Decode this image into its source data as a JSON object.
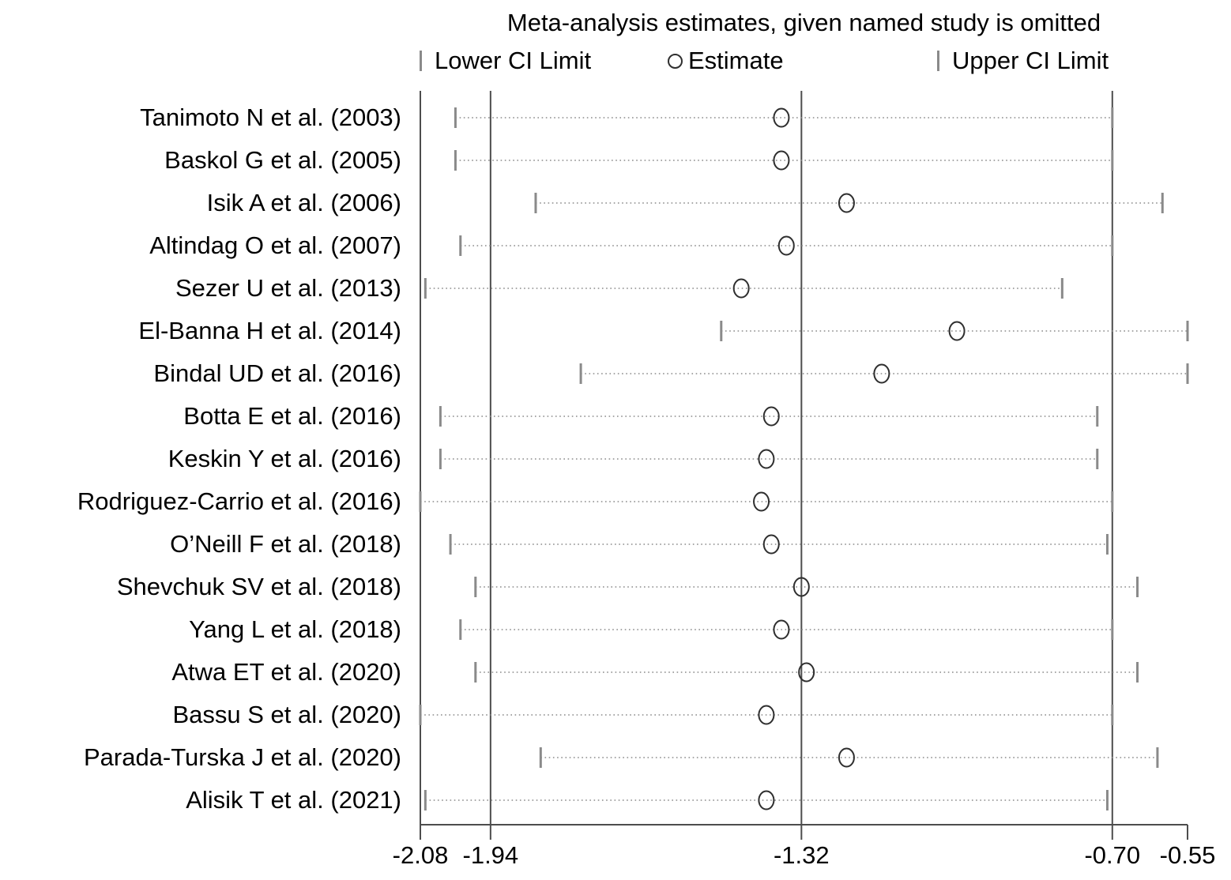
{
  "title": "Meta-analysis estimates, given named study is omitted",
  "legend": {
    "items": [
      {
        "marker": "bar-icon",
        "label": "Lower CI Limit"
      },
      {
        "marker": "circle-icon",
        "label": "Estimate"
      },
      {
        "marker": "bar-icon",
        "label": "Upper CI Limit"
      }
    ]
  },
  "colors": {
    "text": "#000000",
    "axis_line": "#4d4d4d",
    "reference_line": "#4d4d4d",
    "dotted_line": "#8a8a8a",
    "ci_tick": "#8a8a8a",
    "estimate_stroke": "#2f2f2f"
  },
  "chart_data": {
    "type": "scatter",
    "subtype": "leave-one-out-forest-plot",
    "title": "Meta-analysis estimates, given named study is omitted",
    "legend_position": "top",
    "grid": false,
    "xlim": [
      -2.08,
      -0.55
    ],
    "x_ticks": [
      {
        "value": -2.08,
        "label": "-2.08"
      },
      {
        "value": -1.94,
        "label": "-1.94"
      },
      {
        "value": -1.32,
        "label": "-1.32"
      },
      {
        "value": -0.7,
        "label": "-0.70"
      },
      {
        "value": -0.55,
        "label": "-0.55"
      }
    ],
    "reference_lines": [
      -1.94,
      -1.32,
      -0.7
    ],
    "y_axis_at": -2.08,
    "categories": [
      "Tanimoto N et al. (2003)",
      "Baskol G et al. (2005)",
      "Isik A et al. (2006)",
      "Altindag O et al. (2007)",
      "Sezer U et al. (2013)",
      "El-Banna H et al. (2014)",
      "Bindal UD et al. (2016)",
      "Botta E et al. (2016)",
      "Keskin Y et al. (2016)",
      "Rodriguez-Carrio et al. (2016)",
      "O’Neill F et al. (2018)",
      "Shevchuk SV et al. (2018)",
      "Yang L et al. (2018)",
      "Atwa ET et al. (2020)",
      "Bassu S et al. (2020)",
      "Parada-Turska J et al. (2020)",
      "Alisik T et al. (2021)"
    ],
    "series": [
      {
        "name": "Lower CI Limit",
        "values": [
          -2.01,
          -2.01,
          -1.85,
          -2.0,
          -2.07,
          -1.48,
          -1.76,
          -2.04,
          -2.04,
          -2.08,
          -2.02,
          -1.97,
          -2.0,
          -1.97,
          -2.08,
          -1.84,
          -2.07
        ]
      },
      {
        "name": "Estimate",
        "values": [
          -1.36,
          -1.36,
          -1.23,
          -1.35,
          -1.44,
          -1.01,
          -1.16,
          -1.38,
          -1.39,
          -1.4,
          -1.38,
          -1.32,
          -1.36,
          -1.31,
          -1.39,
          -1.23,
          -1.39
        ]
      },
      {
        "name": "Upper CI Limit",
        "values": [
          -0.7,
          -0.7,
          -0.6,
          -0.7,
          -0.8,
          -0.55,
          -0.55,
          -0.73,
          -0.73,
          -0.7,
          -0.71,
          -0.65,
          -0.7,
          -0.65,
          -0.7,
          -0.61,
          -0.71
        ]
      }
    ]
  }
}
